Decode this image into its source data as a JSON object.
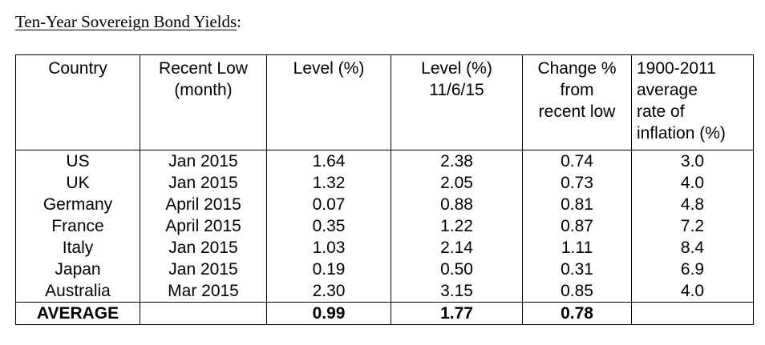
{
  "title": {
    "text": "Ten-Year Sovereign Bond Yields",
    "suffix": ":"
  },
  "table": {
    "headers": [
      {
        "lines": [
          "Country"
        ]
      },
      {
        "lines": [
          "Recent Low",
          "(month)"
        ]
      },
      {
        "lines": [
          "Level (%)"
        ]
      },
      {
        "lines": [
          "Level (%)",
          "11/6/15"
        ]
      },
      {
        "lines": [
          "Change %",
          "from",
          "recent low"
        ]
      },
      {
        "lines": [
          "1900-2011",
          "average",
          "rate of",
          "inflation (%)"
        ]
      }
    ],
    "rows": [
      [
        "US",
        "Jan 2015",
        "1.64",
        "2.38",
        "0.74",
        "3.0"
      ],
      [
        "UK",
        "Jan 2015",
        "1.32",
        "2.05",
        "0.73",
        "4.0"
      ],
      [
        "Germany",
        "April 2015",
        "0.07",
        "0.88",
        "0.81",
        "4.8"
      ],
      [
        "France",
        "April 2015",
        "0.35",
        "1.22",
        "0.87",
        "7.2"
      ],
      [
        "Italy",
        "Jan 2015",
        "1.03",
        "2.14",
        "1.11",
        "8.4"
      ],
      [
        "Japan",
        "Jan 2015",
        "0.19",
        "0.50",
        "0.31",
        "6.9"
      ],
      [
        "Australia",
        "Mar 2015",
        "2.30",
        "3.15",
        "0.85",
        "4.0"
      ]
    ],
    "average": [
      "AVERAGE",
      "",
      "0.99",
      "1.77",
      "0.78",
      ""
    ]
  }
}
